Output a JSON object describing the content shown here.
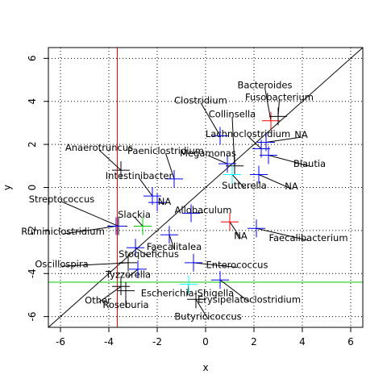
{
  "chart_data": {
    "type": "scatter",
    "xlabel": "x",
    "ylabel": "y",
    "xlim": [
      -6.5,
      6.5
    ],
    "ylim": [
      -6.5,
      6.5
    ],
    "x_ticks": [
      -6,
      -4,
      -2,
      0,
      2,
      4,
      6
    ],
    "y_ticks": [
      -6,
      -4,
      -2,
      0,
      2,
      4,
      6
    ],
    "grid": true,
    "grid_style": "dotted",
    "diagonal": {
      "slope": 1,
      "intercept": 0,
      "color": "#000000"
    },
    "vline": {
      "x": -3.65,
      "color": "#ff0000"
    },
    "hline": {
      "y": -4.4,
      "color": "#00cc00"
    },
    "points": [
      {
        "label": "Bacteroides",
        "x": 2.7,
        "y": 3.1,
        "color": "#ff0000",
        "lx": 2.45,
        "ly": 4.75
      },
      {
        "label": "Fusobacterium",
        "x": 3.0,
        "y": 3.3,
        "color": "#000000",
        "lx": 3.05,
        "ly": 4.2
      },
      {
        "label": "Clostridium",
        "x": 0.6,
        "y": 2.4,
        "color": "#0000ff",
        "lx": -0.2,
        "ly": 4.05
      },
      {
        "label": "Collinsella",
        "x": 1.2,
        "y": 1.0,
        "color": "#000000",
        "lx": 1.1,
        "ly": 3.4
      },
      {
        "label": "Lachnoclostridium",
        "x": 2.3,
        "y": 1.8,
        "color": "#0000ff",
        "lx": 1.75,
        "ly": 2.5
      },
      {
        "label": "NA",
        "x": 2.5,
        "y": 2.1,
        "color": "#0000ff",
        "lx": 3.95,
        "ly": 2.45
      },
      {
        "label": "Blautia",
        "x": 2.6,
        "y": 1.5,
        "color": "#0000ff",
        "lx": 4.3,
        "ly": 1.1
      },
      {
        "label": "Megamonas",
        "x": 0.9,
        "y": 1.1,
        "color": "#0000ff",
        "lx": 0.1,
        "ly": 1.6
      },
      {
        "label": "Paeniclostridium",
        "x": -1.3,
        "y": 0.4,
        "color": "#0000ff",
        "lx": -1.65,
        "ly": 1.7
      },
      {
        "label": "Anaerotruncus",
        "x": -3.5,
        "y": 0.8,
        "color": "#000000",
        "lx": -4.4,
        "ly": 1.85
      },
      {
        "label": "Sutterella",
        "x": 1.1,
        "y": 0.6,
        "color": "#00ffff",
        "lx": 1.6,
        "ly": 0.1
      },
      {
        "label": "NA",
        "x": 2.2,
        "y": 0.6,
        "color": "#0000ff",
        "lx": 3.55,
        "ly": 0.05
      },
      {
        "label": "Intestinibacter",
        "x": -2.2,
        "y": -0.4,
        "color": "#0000ff",
        "lx": -2.75,
        "ly": 0.55
      },
      {
        "label": "NA",
        "x": -2.0,
        "y": -0.7,
        "color": "#0000ff",
        "lx": -1.7,
        "ly": -0.65
      },
      {
        "label": "Streptococcus",
        "x": -3.6,
        "y": -1.8,
        "color": "#000000",
        "lx": -5.95,
        "ly": -0.55
      },
      {
        "label": "Allobaculum",
        "x": -0.6,
        "y": -1.2,
        "color": "#0000ff",
        "lx": -0.1,
        "ly": -1.05
      },
      {
        "label": "Slackia",
        "x": -2.6,
        "y": -1.8,
        "color": "#00cc00",
        "lx": -2.95,
        "ly": -1.25
      },
      {
        "label": "NA",
        "x": 1.0,
        "y": -1.6,
        "color": "#ff0000",
        "lx": 1.45,
        "ly": -2.25
      },
      {
        "label": "Faecalibacterium",
        "x": 2.1,
        "y": -1.9,
        "color": "#0000ff",
        "lx": 4.25,
        "ly": -2.35
      },
      {
        "label": "Ruminiclostridium",
        "x": -3.7,
        "y": -1.8,
        "color": "#0000ff",
        "lx": -5.9,
        "ly": -2.05
      },
      {
        "label": "Faecalitalea",
        "x": -1.5,
        "y": -2.2,
        "color": "#0000ff",
        "lx": -1.3,
        "ly": -2.75
      },
      {
        "label": "Stoquefichus",
        "x": -2.9,
        "y": -2.8,
        "color": "#0000ff",
        "lx": -2.35,
        "ly": -3.1
      },
      {
        "label": "Oscillospira",
        "x": -3.2,
        "y": -3.5,
        "color": "#000000",
        "lx": -5.95,
        "ly": -3.55
      },
      {
        "label": "Enterococcus",
        "x": -0.5,
        "y": -3.5,
        "color": "#0000ff",
        "lx": 1.3,
        "ly": -3.6
      },
      {
        "label": "Tyzzerella",
        "x": -2.8,
        "y": -3.8,
        "color": "#0000ff",
        "lx": -3.2,
        "ly": -4.05
      },
      {
        "label": "Escherichia-Shigella",
        "x": -0.7,
        "y": -4.5,
        "color": "#00ffff",
        "lx": -0.75,
        "ly": -4.9
      },
      {
        "label": "Erysipelatoclostridium",
        "x": 0.6,
        "y": -4.3,
        "color": "#0000ff",
        "lx": 1.8,
        "ly": -5.2
      },
      {
        "label": "Other",
        "x": -3.5,
        "y": -4.6,
        "color": "#000000",
        "lx": -4.45,
        "ly": -5.25
      },
      {
        "label": "Roseburia",
        "x": -3.3,
        "y": -4.8,
        "color": "#000000",
        "lx": -3.3,
        "ly": -5.45
      },
      {
        "label": "Butyricicoccus",
        "x": -0.4,
        "y": -5.2,
        "color": "#000000",
        "lx": 0.1,
        "ly": -6.0
      }
    ]
  }
}
